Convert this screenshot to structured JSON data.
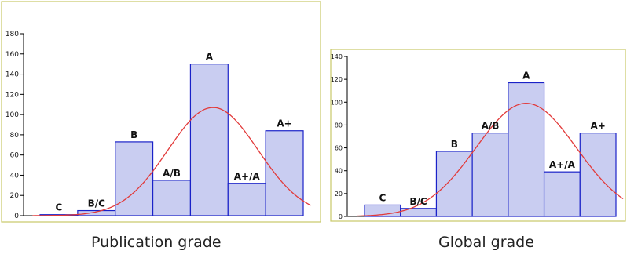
{
  "colors": {
    "bar_fill": "#c9cdf1",
    "bar_stroke": "#1a22c8",
    "curve": "#e23a3a",
    "frame": "#c8c868",
    "axis": "#000000"
  },
  "chart_data": [
    {
      "type": "bar",
      "title": "",
      "caption": "Publication grade",
      "categories": [
        "C",
        "B/C",
        "B",
        "A/B",
        "A",
        "A+/A",
        "A+"
      ],
      "values": [
        1,
        5,
        73,
        35,
        150,
        32,
        84
      ],
      "ylim": [
        0,
        180
      ],
      "yticks": [
        0,
        20,
        40,
        60,
        80,
        100,
        120,
        140,
        160,
        180
      ],
      "xlabel": "",
      "ylabel": "",
      "grid": false,
      "curve": {
        "type": "normal-fit",
        "mean": 4.6,
        "sd": 1.2,
        "peak": 107
      }
    },
    {
      "type": "bar",
      "title": "",
      "caption": "Global grade",
      "categories": [
        "C",
        "B/C",
        "B",
        "A/B",
        "A",
        "A+/A",
        "A+"
      ],
      "values": [
        10,
        7,
        57,
        73,
        117,
        39,
        73
      ],
      "ylim": [
        0,
        140
      ],
      "yticks": [
        0,
        20,
        40,
        60,
        80,
        100,
        120,
        140
      ],
      "xlabel": "",
      "ylabel": "",
      "grid": false,
      "curve": {
        "type": "normal-fit",
        "mean": 4.5,
        "sd": 1.4,
        "peak": 99
      }
    }
  ]
}
